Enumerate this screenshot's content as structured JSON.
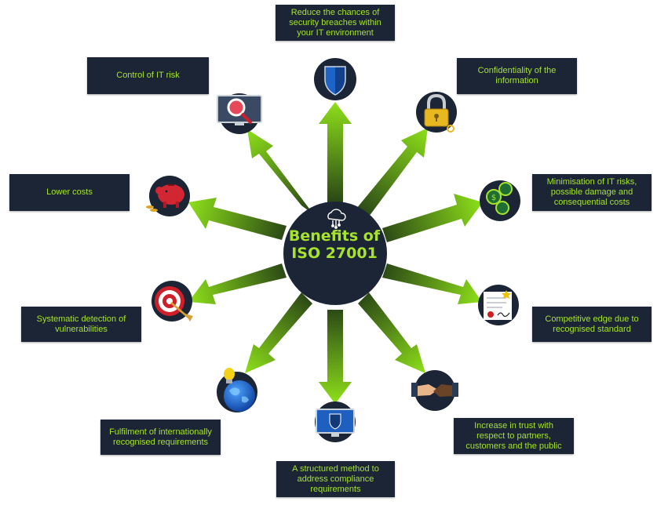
{
  "center": {
    "title": "Benefits of\nISO 27001",
    "icon": "cloud-network-icon"
  },
  "colors": {
    "navy": "#1b2536",
    "accent": "#a6e22e",
    "arrow_dark": "#2c4a16",
    "arrow_light": "#8ee01a"
  },
  "benefits": [
    {
      "id": "security-breaches",
      "label": "Reduce the chances of security breaches within your IT environment",
      "icon": "shield-icon"
    },
    {
      "id": "confidentiality",
      "label": "Confidentiality of the information",
      "icon": "padlock-icon"
    },
    {
      "id": "minimisation",
      "label": "Minimisation of IT risks, possible damage and consequential costs",
      "icon": "coins-icon"
    },
    {
      "id": "competitive-edge",
      "label": "Competitive edge due to recognised standard",
      "icon": "certificate-icon"
    },
    {
      "id": "trust",
      "label": "Increase in trust with respect to partners, customers and the public",
      "icon": "handshake-icon"
    },
    {
      "id": "structured-method",
      "label": "A structured method to address compliance requirements",
      "icon": "monitor-shield-icon"
    },
    {
      "id": "international",
      "label": "Fulfilment of internationally recognised requirements",
      "icon": "globe-lightbulb-icon"
    },
    {
      "id": "vulnerabilities",
      "label": "Systematic detection of vulnerabilities",
      "icon": "target-icon"
    },
    {
      "id": "lower-costs",
      "label": "Lower costs",
      "icon": "piggy-bank-icon"
    },
    {
      "id": "it-risk",
      "label": "Control of IT risk",
      "icon": "magnifier-monitor-icon"
    }
  ]
}
